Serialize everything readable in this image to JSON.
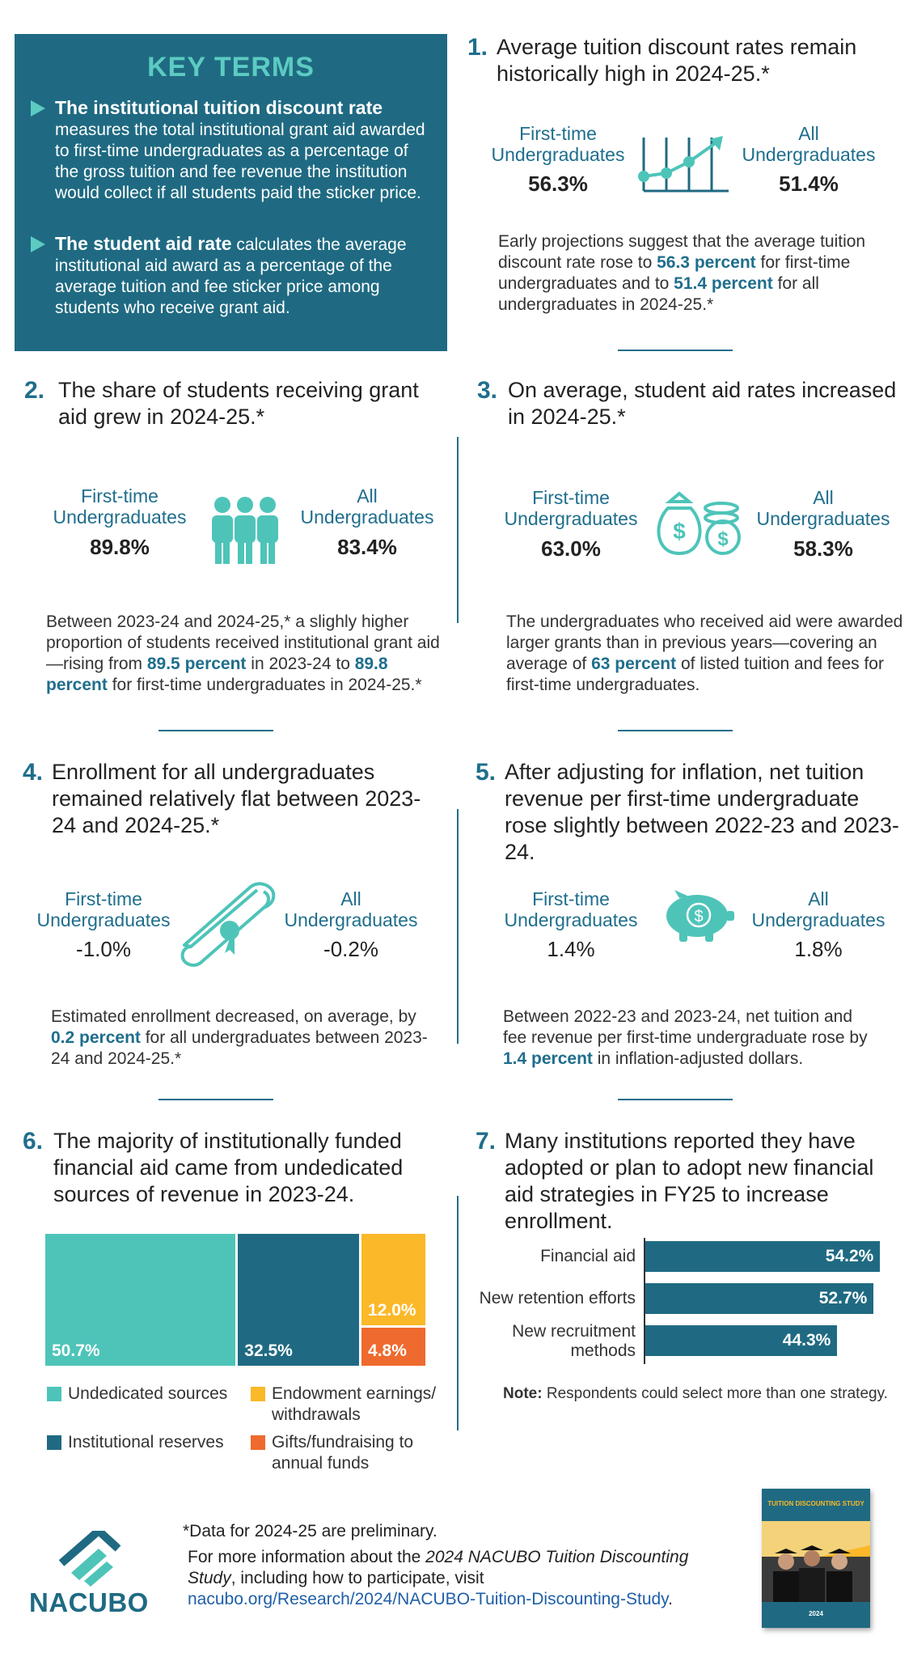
{
  "key_terms": {
    "title": "KEY TERMS",
    "term1_name": "The institutional tuition discount rate",
    "term1_def": "measures the total institutional grant aid awarded to first-time undergraduates as a percentage of the gross tuition and fee revenue the institution would collect if all students paid the sticker price.",
    "term2_name": "The student aid rate",
    "term2_def": "calculates the average institutional aid award as a percentage of the average tuition and fee sticker price among students who receive grant aid."
  },
  "labels": {
    "first_time": "First-time Undergraduates",
    "all": "All Undergraduates"
  },
  "s1": {
    "num": "1.",
    "title": "Average tuition discount rates remain historically high in 2024-25.*",
    "first_val": "56.3%",
    "all_val": "51.4%",
    "body_a": "Early projections suggest that the average tuition discount rate rose to ",
    "hl1": "56.3 percent",
    "body_b": " for first-time undergraduates and to ",
    "hl2": "51.4 percent",
    "body_c": " for all undergraduates in 2024-25.*"
  },
  "s2": {
    "num": "2.",
    "title": "The share of students receiving grant aid grew in 2024-25.*",
    "first_val": "89.8%",
    "all_val": "83.4%",
    "body_a": "Between 2023-24 and 2024-25,* a slighly higher proportion of students received institutional grant aid—rising from ",
    "hl1": "89.5 percent",
    "body_b": " in 2023-24 to ",
    "hl2": "89.8 percent",
    "body_c": " for first-time undergraduates in 2024-25.*"
  },
  "s3": {
    "num": "3.",
    "title": "On average, student aid rates increased in 2024-25.*",
    "first_val": "63.0%",
    "all_val": "58.3%",
    "body_a": "The undergraduates who received aid were awarded larger grants than in previous years—covering an average of ",
    "hl1": "63 percent",
    "body_b": " of listed tuition and fees for first-time undergraduates."
  },
  "s4": {
    "num": "4.",
    "title": "Enrollment for all undergraduates remained relatively flat between 2023-24 and 2024-25.*",
    "first_val": "-1.0%",
    "all_val": "-0.2%",
    "body_a": "Estimated enrollment decreased, on average, by ",
    "hl1": "0.2 percent",
    "body_b": " for all undergraduates between 2023-24 and 2024-25.*"
  },
  "s5": {
    "num": "5.",
    "title": "After adjusting for inflation, net tuition revenue per first-time undergraduate rose slightly between 2022-23 and 2023-24.",
    "first_val": "1.4%",
    "all_val": "1.8%",
    "body_a": "Between 2022-23 and 2023-24, net tuition and fee revenue per first-time undergraduate rose by ",
    "hl1": "1.4 percent",
    "body_b": " in inflation-adjusted dollars."
  },
  "s6": {
    "num": "6.",
    "title": "The majority of institutionally funded financial aid came from undedicated sources of revenue in 2023-24."
  },
  "s7": {
    "num": "7.",
    "title": "Many institutions reported they have adopted or plan to adopt new financial aid strategies in FY25 to increase enrollment.",
    "note_label": "Note:",
    "note_text": " Respondents could select more than one strategy."
  },
  "chart_data": [
    {
      "type": "bar",
      "subtype": "stacked-100",
      "categories": [
        "Undedicated sources",
        "Institutional reserves",
        "Endowment earnings/ withdrawals",
        "Gifts/fundraising to annual funds"
      ],
      "values": [
        50.7,
        32.5,
        12.0,
        4.8
      ],
      "labels": [
        "50.7%",
        "32.5%",
        "12.0%",
        "4.8%"
      ],
      "colors": [
        "#4ec4b9",
        "#1f6a82",
        "#fbb828",
        "#ef6a2e"
      ],
      "legend": "bottom"
    },
    {
      "type": "bar",
      "orientation": "horizontal",
      "categories": [
        "Financial aid",
        "New retention efforts",
        "New recruitment methods"
      ],
      "values": [
        54.2,
        52.7,
        44.3
      ],
      "labels": [
        "54.2%",
        "52.7%",
        "44.3%"
      ],
      "color": "#1f6a82"
    }
  ],
  "footer": {
    "logo_text": "NACUBO",
    "prelim": "*Data for 2024-25 are preliminary.",
    "info_a": "For more information about the ",
    "info_title": "2024 NACUBO Tuition Discounting Study",
    "info_b": ", including how to participate, visit",
    "link": "nacubo.org/Research/2024/NACUBO-Tuition-Discounting-Study",
    "link_end": ".",
    "cover_title": "TUITION DISCOUNTING STUDY",
    "cover_year": "2024"
  }
}
